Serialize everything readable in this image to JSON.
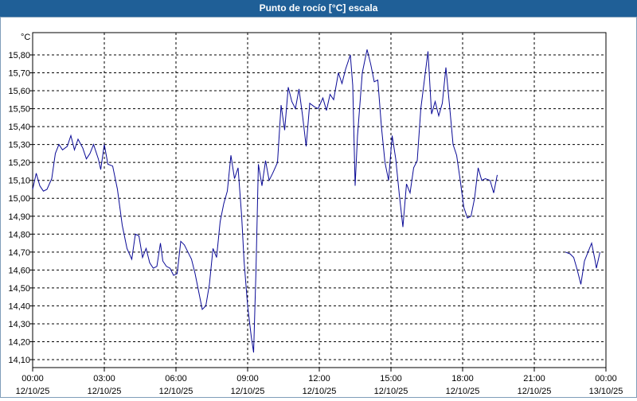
{
  "window": {
    "title": "Punto de rocío [°C] escala"
  },
  "chart_data": {
    "type": "line",
    "title": "Punto de rocío [°C] escala",
    "ylabel": "°C",
    "xlabel": "",
    "ylim": [
      14.1,
      15.85
    ],
    "xlim_hours": [
      0,
      24
    ],
    "grid": true,
    "y_ticks": [
      "14,10",
      "14,20",
      "14,30",
      "14,40",
      "14,50",
      "14,60",
      "14,70",
      "14,80",
      "14,90",
      "15,00",
      "15,10",
      "15,20",
      "15,30",
      "15,40",
      "15,50",
      "15,60",
      "15,70",
      "15,80"
    ],
    "x_ticks": [
      {
        "time": "00:00",
        "date": "12/10/25"
      },
      {
        "time": "03:00",
        "date": "12/10/25"
      },
      {
        "time": "06:00",
        "date": "12/10/25"
      },
      {
        "time": "09:00",
        "date": "12/10/25"
      },
      {
        "time": "12:00",
        "date": "12/10/25"
      },
      {
        "time": "15:00",
        "date": "12/10/25"
      },
      {
        "time": "18:00",
        "date": "12/10/25"
      },
      {
        "time": "21:00",
        "date": "12/10/25"
      },
      {
        "time": "00:00",
        "date": "13/10/25"
      }
    ],
    "series": [
      {
        "color": "#0a0a96",
        "segments": [
          [
            [
              0.0,
              15.05
            ],
            [
              0.15,
              15.14
            ],
            [
              0.3,
              15.07
            ],
            [
              0.45,
              15.04
            ],
            [
              0.6,
              15.05
            ],
            [
              0.8,
              15.11
            ],
            [
              0.95,
              15.25
            ],
            [
              1.1,
              15.3
            ],
            [
              1.25,
              15.27
            ],
            [
              1.45,
              15.29
            ],
            [
              1.6,
              15.35
            ],
            [
              1.75,
              15.27
            ],
            [
              1.9,
              15.33
            ],
            [
              2.1,
              15.28
            ],
            [
              2.25,
              15.22
            ],
            [
              2.4,
              15.25
            ],
            [
              2.55,
              15.3
            ],
            [
              2.75,
              15.22
            ],
            [
              2.85,
              15.16
            ],
            [
              3.0,
              15.3
            ],
            [
              3.15,
              15.19
            ],
            [
              3.35,
              15.18
            ],
            [
              3.55,
              15.05
            ],
            [
              3.75,
              14.85
            ],
            [
              3.95,
              14.72
            ],
            [
              4.15,
              14.66
            ],
            [
              4.3,
              14.8
            ],
            [
              4.45,
              14.79
            ],
            [
              4.6,
              14.67
            ],
            [
              4.75,
              14.72
            ],
            [
              4.9,
              14.64
            ],
            [
              5.05,
              14.61
            ],
            [
              5.2,
              14.62
            ],
            [
              5.35,
              14.75
            ],
            [
              5.45,
              14.65
            ],
            [
              5.6,
              14.62
            ],
            [
              5.75,
              14.61
            ],
            [
              5.9,
              14.57
            ],
            [
              6.05,
              14.58
            ],
            [
              6.2,
              14.76
            ],
            [
              6.35,
              14.74
            ],
            [
              6.5,
              14.7
            ],
            [
              6.65,
              14.66
            ],
            [
              6.8,
              14.58
            ],
            [
              6.95,
              14.48
            ],
            [
              7.1,
              14.38
            ],
            [
              7.25,
              14.4
            ],
            [
              7.4,
              14.52
            ],
            [
              7.55,
              14.72
            ],
            [
              7.7,
              14.67
            ],
            [
              7.85,
              14.87
            ],
            [
              8.0,
              14.97
            ],
            [
              8.15,
              15.04
            ],
            [
              8.3,
              15.24
            ],
            [
              8.45,
              15.11
            ],
            [
              8.6,
              15.17
            ],
            [
              8.75,
              14.9
            ],
            [
              8.85,
              14.65
            ],
            [
              9.0,
              14.4
            ],
            [
              9.15,
              14.23
            ],
            [
              9.25,
              14.14
            ],
            [
              9.35,
              14.6
            ],
            [
              9.45,
              15.19
            ],
            [
              9.6,
              15.07
            ],
            [
              9.75,
              15.21
            ],
            [
              9.9,
              15.1
            ],
            [
              10.05,
              15.14
            ],
            [
              10.25,
              15.2
            ],
            [
              10.4,
              15.52
            ],
            [
              10.55,
              15.38
            ],
            [
              10.7,
              15.62
            ],
            [
              10.85,
              15.54
            ],
            [
              11.0,
              15.5
            ],
            [
              11.15,
              15.61
            ],
            [
              11.3,
              15.46
            ],
            [
              11.45,
              15.29
            ],
            [
              11.6,
              15.53
            ],
            [
              11.8,
              15.51
            ],
            [
              11.95,
              15.5
            ],
            [
              12.15,
              15.56
            ],
            [
              12.3,
              15.49
            ],
            [
              12.45,
              15.58
            ],
            [
              12.6,
              15.55
            ],
            [
              12.8,
              15.7
            ],
            [
              12.95,
              15.64
            ],
            [
              13.1,
              15.72
            ],
            [
              13.3,
              15.8
            ],
            [
              13.4,
              15.63
            ],
            [
              13.5,
              15.07
            ],
            [
              13.6,
              15.35
            ],
            [
              13.8,
              15.7
            ],
            [
              14.0,
              15.83
            ],
            [
              14.15,
              15.75
            ],
            [
              14.3,
              15.65
            ],
            [
              14.45,
              15.66
            ],
            [
              14.6,
              15.4
            ],
            [
              14.75,
              15.2
            ],
            [
              14.9,
              15.1
            ],
            [
              15.05,
              15.35
            ],
            [
              15.2,
              15.22
            ],
            [
              15.35,
              15.02
            ],
            [
              15.5,
              14.84
            ],
            [
              15.65,
              15.08
            ],
            [
              15.8,
              15.03
            ],
            [
              15.95,
              15.17
            ],
            [
              16.1,
              15.21
            ],
            [
              16.25,
              15.5
            ],
            [
              16.4,
              15.66
            ],
            [
              16.55,
              15.82
            ],
            [
              16.7,
              15.47
            ],
            [
              16.85,
              15.54
            ],
            [
              17.0,
              15.46
            ],
            [
              17.15,
              15.53
            ],
            [
              17.3,
              15.73
            ],
            [
              17.45,
              15.52
            ],
            [
              17.6,
              15.3
            ],
            [
              17.75,
              15.24
            ],
            [
              17.9,
              15.1
            ],
            [
              18.05,
              14.95
            ],
            [
              18.2,
              14.89
            ],
            [
              18.35,
              14.9
            ],
            [
              18.5,
              15.0
            ],
            [
              18.65,
              15.17
            ],
            [
              18.8,
              15.1
            ],
            [
              18.95,
              15.11
            ],
            [
              19.15,
              15.1
            ],
            [
              19.3,
              15.03
            ],
            [
              19.45,
              15.13
            ]
          ],
          [
            [
              22.3,
              14.7
            ],
            [
              22.5,
              14.69
            ],
            [
              22.65,
              14.67
            ],
            [
              22.8,
              14.6
            ],
            [
              22.95,
              14.52
            ],
            [
              23.1,
              14.65
            ],
            [
              23.25,
              14.7
            ],
            [
              23.4,
              14.75
            ],
            [
              23.55,
              14.65
            ],
            [
              23.6,
              14.61
            ],
            [
              23.75,
              14.7
            ]
          ]
        ]
      }
    ]
  }
}
